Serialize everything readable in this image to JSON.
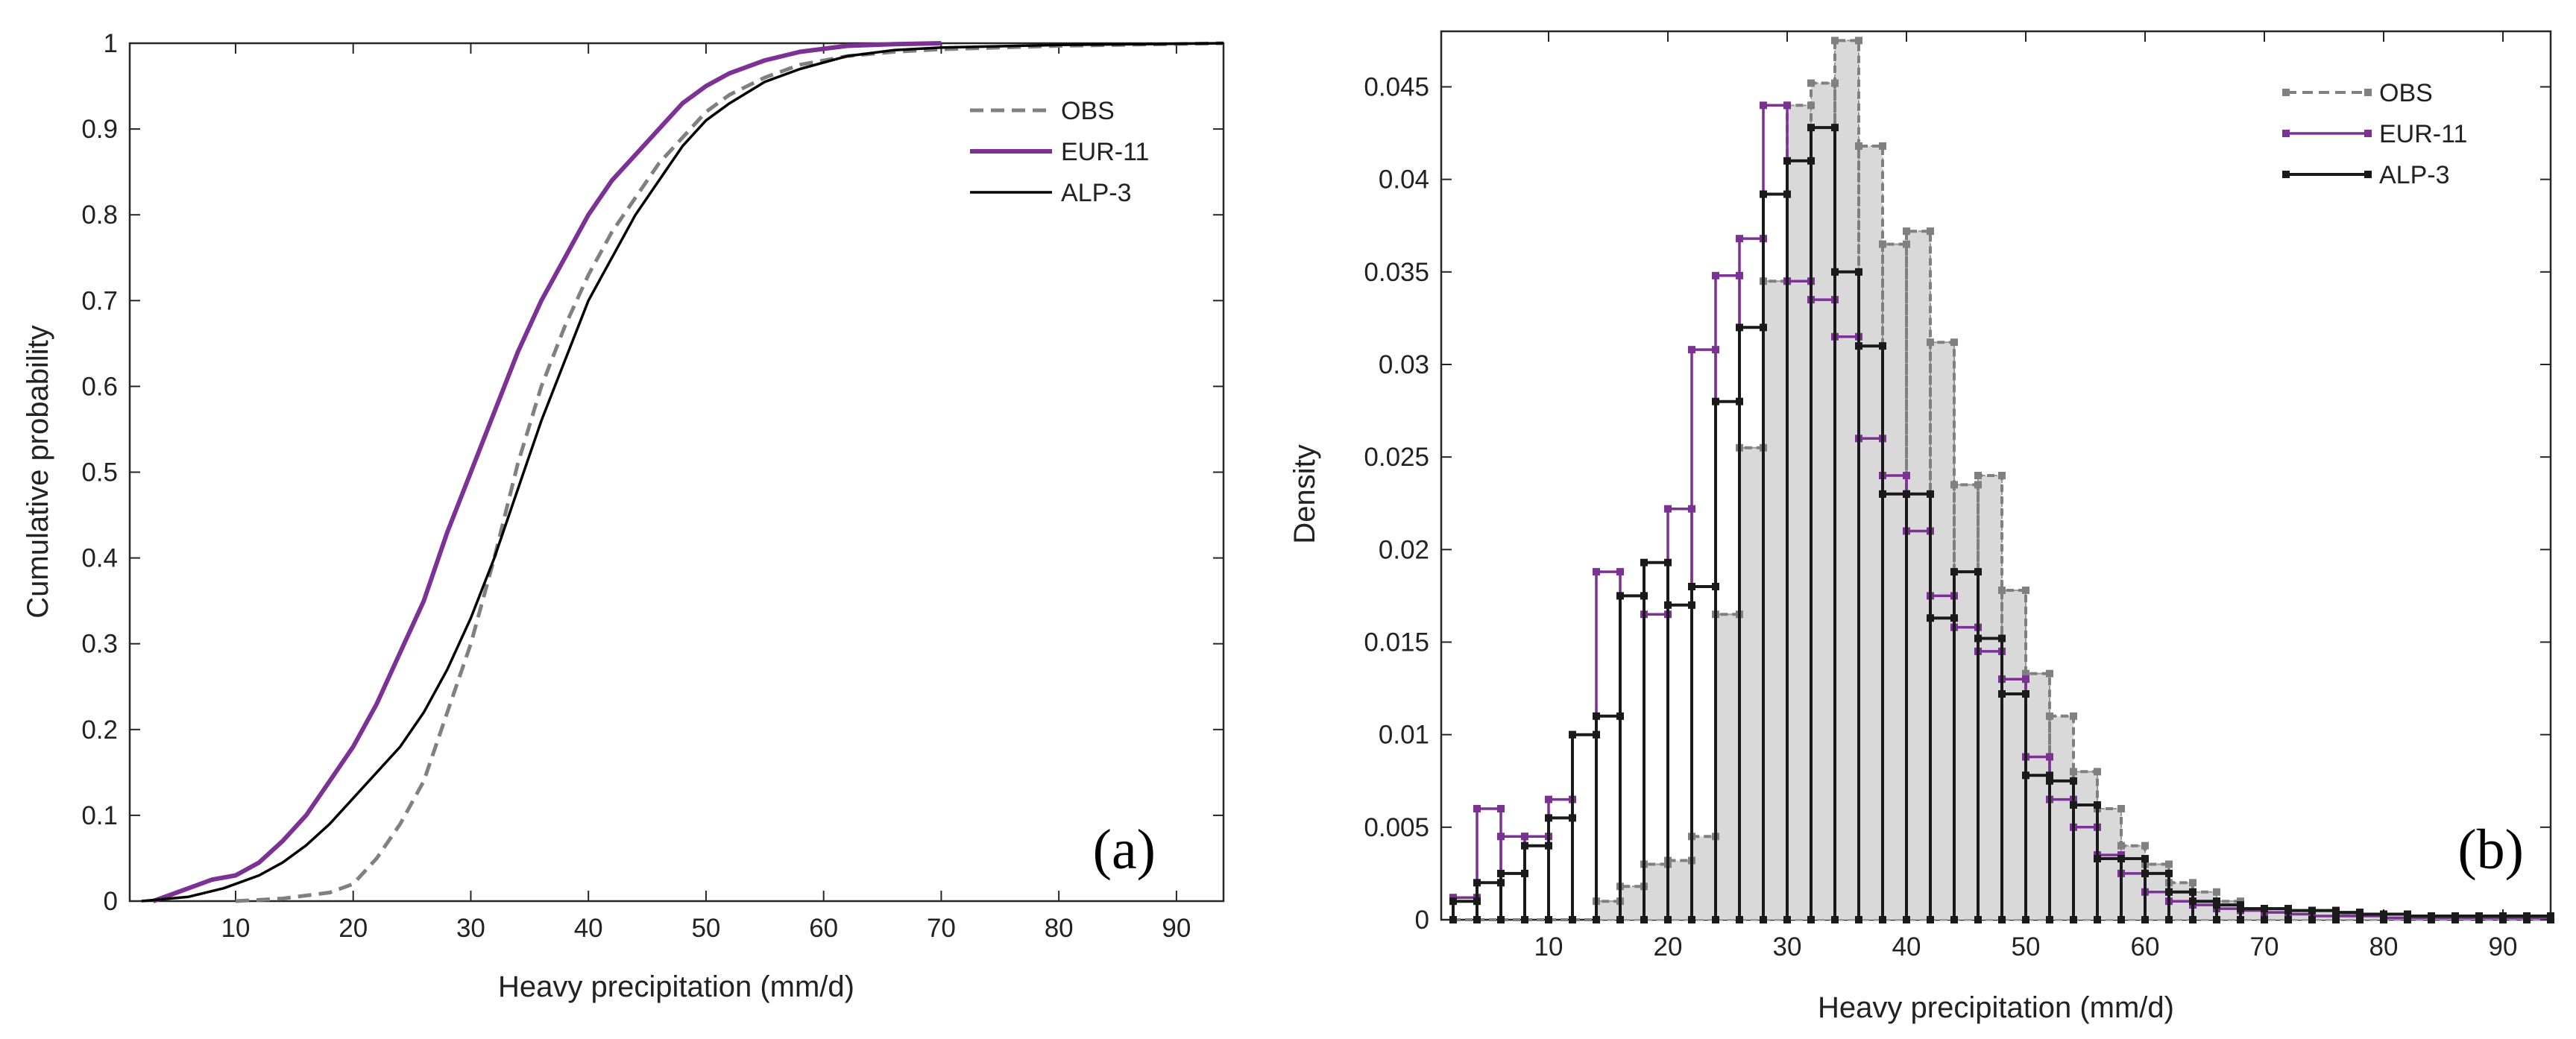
{
  "chart_data": [
    {
      "type": "line",
      "panel_label": "(a)",
      "xlabel": "Heavy precipitation (mm/d)",
      "ylabel": "Cumulative probability",
      "xlim": [
        1,
        94
      ],
      "ylim": [
        0,
        1
      ],
      "xticks": [
        10,
        20,
        30,
        40,
        50,
        60,
        70,
        80,
        90
      ],
      "yticks": [
        0,
        0.1,
        0.2,
        0.3,
        0.4,
        0.5,
        0.6,
        0.7,
        0.8,
        0.9,
        1
      ],
      "legend_position": "top-right",
      "series": [
        {
          "name": "OBS",
          "style": "dashed",
          "color": "#808080",
          "points": [
            [
              10,
              0
            ],
            [
              14,
              0.003
            ],
            [
              18,
              0.01
            ],
            [
              20,
              0.02
            ],
            [
              22,
              0.05
            ],
            [
              24,
              0.09
            ],
            [
              26,
              0.14
            ],
            [
              28,
              0.22
            ],
            [
              30,
              0.3
            ],
            [
              32,
              0.4
            ],
            [
              34,
              0.51
            ],
            [
              36,
              0.6
            ],
            [
              38,
              0.67
            ],
            [
              40,
              0.73
            ],
            [
              42,
              0.78
            ],
            [
              44,
              0.82
            ],
            [
              46,
              0.86
            ],
            [
              48,
              0.89
            ],
            [
              50,
              0.92
            ],
            [
              52,
              0.94
            ],
            [
              55,
              0.96
            ],
            [
              58,
              0.975
            ],
            [
              62,
              0.985
            ],
            [
              66,
              0.99
            ],
            [
              70,
              0.993
            ],
            [
              80,
              0.997
            ],
            [
              94,
              1.0
            ]
          ]
        },
        {
          "name": "EUR-11",
          "style": "solid",
          "color": "#7B3294",
          "points": [
            [
              3,
              0
            ],
            [
              5,
              0.01
            ],
            [
              8,
              0.025
            ],
            [
              10,
              0.03
            ],
            [
              12,
              0.045
            ],
            [
              14,
              0.07
            ],
            [
              16,
              0.1
            ],
            [
              18,
              0.14
            ],
            [
              20,
              0.18
            ],
            [
              22,
              0.23
            ],
            [
              24,
              0.29
            ],
            [
              26,
              0.35
            ],
            [
              28,
              0.43
            ],
            [
              30,
              0.5
            ],
            [
              32,
              0.57
            ],
            [
              34,
              0.64
            ],
            [
              36,
              0.7
            ],
            [
              38,
              0.75
            ],
            [
              40,
              0.8
            ],
            [
              42,
              0.84
            ],
            [
              44,
              0.87
            ],
            [
              46,
              0.9
            ],
            [
              48,
              0.93
            ],
            [
              50,
              0.95
            ],
            [
              52,
              0.965
            ],
            [
              55,
              0.98
            ],
            [
              58,
              0.99
            ],
            [
              62,
              0.997
            ],
            [
              66,
              0.999
            ],
            [
              70,
              1.0
            ]
          ]
        },
        {
          "name": "ALP-3",
          "style": "solid",
          "color": "#000000",
          "points": [
            [
              2,
              0
            ],
            [
              6,
              0.005
            ],
            [
              9,
              0.015
            ],
            [
              12,
              0.03
            ],
            [
              14,
              0.045
            ],
            [
              16,
              0.065
            ],
            [
              18,
              0.09
            ],
            [
              20,
              0.12
            ],
            [
              22,
              0.15
            ],
            [
              24,
              0.18
            ],
            [
              26,
              0.22
            ],
            [
              28,
              0.27
            ],
            [
              30,
              0.33
            ],
            [
              32,
              0.4
            ],
            [
              34,
              0.48
            ],
            [
              36,
              0.56
            ],
            [
              38,
              0.63
            ],
            [
              40,
              0.7
            ],
            [
              42,
              0.75
            ],
            [
              44,
              0.8
            ],
            [
              46,
              0.84
            ],
            [
              48,
              0.88
            ],
            [
              50,
              0.91
            ],
            [
              52,
              0.93
            ],
            [
              55,
              0.955
            ],
            [
              58,
              0.97
            ],
            [
              62,
              0.985
            ],
            [
              66,
              0.992
            ],
            [
              70,
              0.995
            ],
            [
              80,
              0.998
            ],
            [
              94,
              1.0
            ]
          ]
        }
      ]
    },
    {
      "type": "histogram",
      "panel_label": "(b)",
      "xlabel": "Heavy precipitation (mm/d)",
      "ylabel": "Density",
      "xlim": [
        1,
        94
      ],
      "ylim": [
        0,
        0.048
      ],
      "xticks": [
        10,
        20,
        30,
        40,
        50,
        60,
        70,
        80,
        90
      ],
      "yticks": [
        0,
        0.005,
        0.01,
        0.015,
        0.02,
        0.025,
        0.03,
        0.035,
        0.04,
        0.045
      ],
      "ytick_labels": [
        "0",
        "0.005",
        "0.01",
        "0.015",
        "0.02",
        "0.025",
        "0.03",
        "0.035",
        "0.04",
        "0.045"
      ],
      "bin_start": 2,
      "bin_width": 2,
      "legend_position": "top-right",
      "series": [
        {
          "name": "OBS",
          "style": "dashed-filled",
          "color": "#808080",
          "fill": "#d9d9d9",
          "values": [
            0,
            0,
            0,
            0,
            0,
            0,
            0.001,
            0.0018,
            0.003,
            0.0032,
            0.0045,
            0.0165,
            0.0255,
            0.0345,
            0.044,
            0.0452,
            0.0475,
            0.0418,
            0.0365,
            0.0372,
            0.0312,
            0.0235,
            0.024,
            0.0178,
            0.0133,
            0.011,
            0.008,
            0.006,
            0.004,
            0.003,
            0.002,
            0.0015,
            0.001,
            0.0006,
            0.0006,
            0.0005,
            0.0005,
            0.0003,
            0.0003,
            0.0003,
            0.0002,
            0.0002,
            0.0002,
            0.0001,
            0.0001,
            0.0001
          ]
        },
        {
          "name": "EUR-11",
          "style": "solid",
          "color": "#7B3294",
          "values": [
            0.0012,
            0.006,
            0.0045,
            0.0045,
            0.0065,
            0.01,
            0.0188,
            0.0175,
            0.0165,
            0.0222,
            0.0308,
            0.0348,
            0.0368,
            0.044,
            0.0345,
            0.0335,
            0.0315,
            0.026,
            0.024,
            0.021,
            0.0175,
            0.0158,
            0.0145,
            0.013,
            0.0088,
            0.0065,
            0.005,
            0.0035,
            0.0025,
            0.0015,
            0.001,
            0.0008,
            0.0006,
            0.0005,
            0.0004,
            0.0003,
            0.0002,
            0.0002,
            0.0002,
            0.0001,
            0.0001,
            0.0001,
            0.0001,
            0.0001,
            0.0001,
            0.0001
          ]
        },
        {
          "name": "ALP-3",
          "style": "solid",
          "color": "#1a1a1a",
          "values": [
            0.001,
            0.002,
            0.0025,
            0.004,
            0.0055,
            0.01,
            0.011,
            0.0175,
            0.0193,
            0.017,
            0.018,
            0.028,
            0.032,
            0.0392,
            0.041,
            0.0428,
            0.035,
            0.031,
            0.023,
            0.023,
            0.0163,
            0.0188,
            0.0152,
            0.0122,
            0.0078,
            0.0075,
            0.0062,
            0.0033,
            0.0033,
            0.0025,
            0.0015,
            0.001,
            0.0008,
            0.0006,
            0.0006,
            0.0005,
            0.0005,
            0.0004,
            0.0003,
            0.0003,
            0.0002,
            0.0002,
            0.0002,
            0.0002,
            0.0002,
            0.0002
          ]
        }
      ]
    }
  ]
}
